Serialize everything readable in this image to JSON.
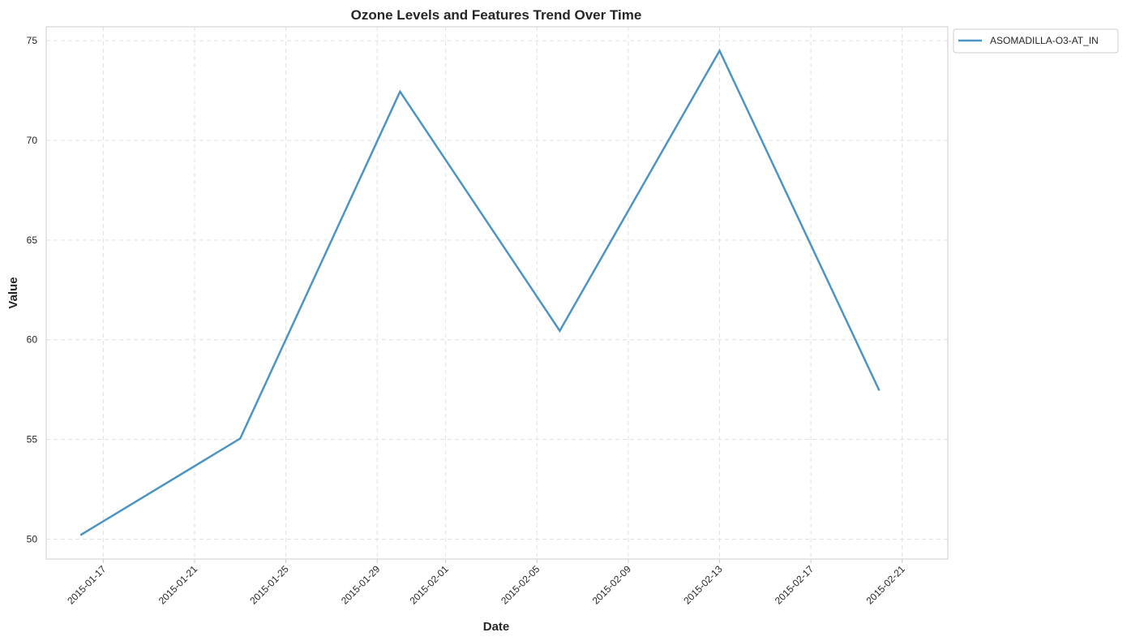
{
  "chart_data": {
    "type": "line",
    "title": "Ozone Levels and Features Trend Over Time",
    "xlabel": "Date",
    "ylabel": "Value",
    "x_ticks": [
      "2015-01-17",
      "2015-01-21",
      "2015-01-25",
      "2015-01-29",
      "2015-02-01",
      "2015-02-05",
      "2015-02-09",
      "2015-02-13",
      "2015-02-17",
      "2015-02-21"
    ],
    "y_ticks": [
      50,
      55,
      60,
      65,
      70,
      75
    ],
    "xlim": [
      "2015-01-14T12:00",
      "2015-02-23T00:00"
    ],
    "ylim": [
      49.0,
      75.7
    ],
    "grid": true,
    "legend_position": "outside top-right",
    "series": [
      {
        "name": "ASOMADILLA-O3-AT_IN",
        "color": "#4c94c4",
        "x": [
          "2015-01-16",
          "2015-01-23",
          "2015-01-30",
          "2015-02-06",
          "2015-02-13",
          "2015-02-20"
        ],
        "values": [
          50.2,
          55.05,
          72.45,
          60.45,
          74.5,
          57.45
        ]
      }
    ]
  }
}
